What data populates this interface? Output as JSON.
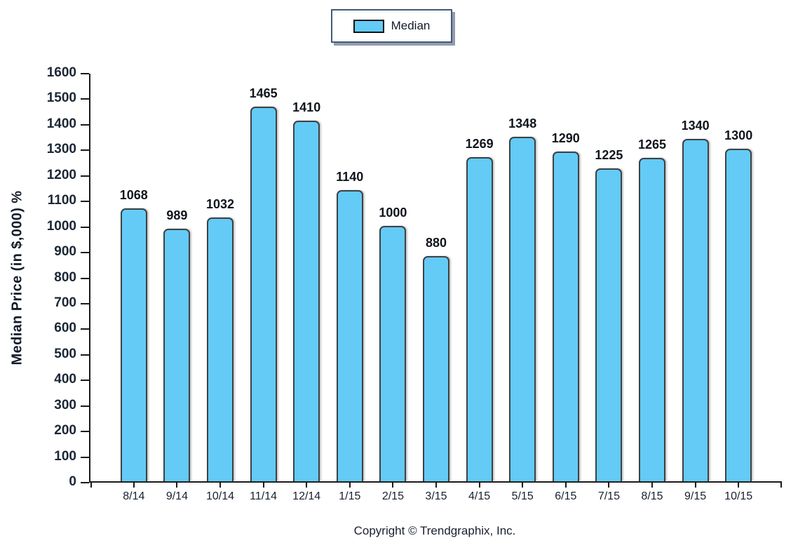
{
  "legend": {
    "label": "Median"
  },
  "footer": {
    "copyright": "Copyright © Trendgraphix, Inc."
  },
  "colors": {
    "bar_fill": "#63cbf5",
    "bar_border": "#3d4145",
    "axis": "#1a1a1a",
    "legend_border": "#44597c",
    "text": "#131b28"
  },
  "chart_data": {
    "type": "bar",
    "title": "",
    "xlabel": "",
    "ylabel": "Median Price (in $,000) %",
    "categories": [
      "8/14",
      "9/14",
      "10/14",
      "11/14",
      "12/14",
      "1/15",
      "2/15",
      "3/15",
      "4/15",
      "5/15",
      "6/15",
      "7/15",
      "8/15",
      "9/15",
      "10/15"
    ],
    "values": [
      1068,
      989,
      1032,
      1465,
      1410,
      1140,
      1000,
      880,
      1269,
      1348,
      1290,
      1225,
      1265,
      1340,
      1300
    ],
    "series": [
      {
        "name": "Median",
        "values": [
          1068,
          989,
          1032,
          1465,
          1410,
          1140,
          1000,
          880,
          1269,
          1348,
          1290,
          1225,
          1265,
          1340,
          1300
        ]
      }
    ],
    "ylim": [
      0,
      1600
    ],
    "ytick_step": 100,
    "grid": false,
    "legend_entries": [
      "Median"
    ],
    "legend_position": "top-center",
    "bar_value_labels": true
  }
}
